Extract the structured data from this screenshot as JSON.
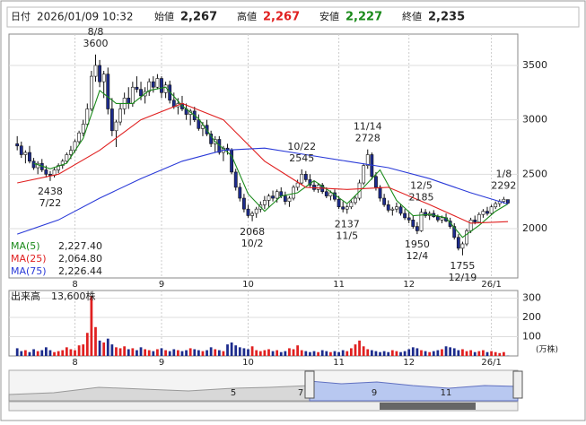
{
  "header": {
    "date_label": "日付",
    "datetime": "2026/01/09 10:32",
    "open_label": "始値",
    "open": "2,267",
    "high_label": "高値",
    "high": "2,267",
    "low_label": "安値",
    "low": "2,227",
    "close_label": "終値",
    "close": "2,235"
  },
  "chart_data": [
    {
      "type": "candlestick",
      "xlim": [
        -2,
        121.4
      ],
      "xticks": [
        {
          "value": 14,
          "label": "8"
        },
        {
          "value": 35,
          "label": "9"
        },
        {
          "value": 56,
          "label": "10"
        },
        {
          "value": 78,
          "label": "11"
        },
        {
          "value": 95,
          "label": "12"
        },
        {
          "value": 115,
          "label": "26/1"
        }
      ],
      "ylim": [
        1547,
        3788
      ],
      "yticks": [
        2000,
        2500,
        3000,
        3500
      ],
      "grid": true,
      "up_color": "#ffffff",
      "down_color": "#1c2b8c",
      "candles": [
        [
          2780,
          2850,
          2720,
          2760
        ],
        [
          2760,
          2800,
          2650,
          2680
        ],
        [
          2680,
          2720,
          2600,
          2700
        ],
        [
          2700,
          2760,
          2600,
          2620
        ],
        [
          2620,
          2650,
          2540,
          2560
        ],
        [
          2560,
          2620,
          2500,
          2600
        ],
        [
          2600,
          2640,
          2520,
          2540
        ],
        [
          2540,
          2580,
          2470,
          2500
        ],
        [
          2500,
          2530,
          2438,
          2490
        ],
        [
          2490,
          2560,
          2470,
          2540
        ],
        [
          2540,
          2600,
          2510,
          2580
        ],
        [
          2580,
          2640,
          2550,
          2620
        ],
        [
          2620,
          2700,
          2600,
          2680
        ],
        [
          2680,
          2760,
          2640,
          2720
        ],
        [
          2720,
          2820,
          2700,
          2800
        ],
        [
          2800,
          2900,
          2780,
          2880
        ],
        [
          2880,
          3000,
          2850,
          2960
        ],
        [
          2960,
          3150,
          2940,
          3100
        ],
        [
          3100,
          3450,
          3080,
          3400
        ],
        [
          3400,
          3600,
          3350,
          3500
        ],
        [
          3500,
          3550,
          3300,
          3350
        ],
        [
          3350,
          3450,
          3200,
          3420
        ],
        [
          3420,
          3480,
          3050,
          3100
        ],
        [
          3100,
          3200,
          2850,
          2900
        ],
        [
          2900,
          3000,
          2750,
          2980
        ],
        [
          2980,
          3150,
          2950,
          3100
        ],
        [
          3100,
          3250,
          3050,
          3200
        ],
        [
          3200,
          3300,
          3100,
          3150
        ],
        [
          3150,
          3350,
          3120,
          3300
        ],
        [
          3300,
          3400,
          3250,
          3280
        ],
        [
          3280,
          3350,
          3180,
          3220
        ],
        [
          3220,
          3300,
          3150,
          3260
        ],
        [
          3260,
          3380,
          3220,
          3350
        ],
        [
          3350,
          3400,
          3250,
          3300
        ],
        [
          3300,
          3420,
          3280,
          3380
        ],
        [
          3380,
          3400,
          3200,
          3250
        ],
        [
          3250,
          3350,
          3200,
          3320
        ],
        [
          3320,
          3360,
          3150,
          3180
        ],
        [
          3180,
          3250,
          3100,
          3120
        ],
        [
          3120,
          3200,
          3050,
          3150
        ],
        [
          3150,
          3220,
          3080,
          3100
        ],
        [
          3100,
          3150,
          3000,
          3050
        ],
        [
          3050,
          3100,
          2950,
          3080
        ],
        [
          3080,
          3120,
          2980,
          3000
        ],
        [
          3000,
          3050,
          2900,
          2920
        ],
        [
          2920,
          2980,
          2850,
          2950
        ],
        [
          2950,
          3000,
          2850,
          2870
        ],
        [
          2870,
          2900,
          2750,
          2780
        ],
        [
          2780,
          2850,
          2700,
          2820
        ],
        [
          2820,
          2850,
          2680,
          2700
        ],
        [
          2700,
          2760,
          2620,
          2740
        ],
        [
          2740,
          2780,
          2680,
          2720
        ],
        [
          2720,
          2740,
          2500,
          2520
        ],
        [
          2520,
          2550,
          2350,
          2380
        ],
        [
          2380,
          2420,
          2250,
          2280
        ],
        [
          2280,
          2320,
          2150,
          2180
        ],
        [
          2180,
          2220,
          2100,
          2120
        ],
        [
          2120,
          2160,
          2068,
          2140
        ],
        [
          2140,
          2200,
          2100,
          2180
        ],
        [
          2180,
          2250,
          2150,
          2220
        ],
        [
          2220,
          2300,
          2180,
          2260
        ],
        [
          2260,
          2320,
          2200,
          2300
        ],
        [
          2300,
          2350,
          2250,
          2280
        ],
        [
          2280,
          2360,
          2240,
          2340
        ],
        [
          2340,
          2380,
          2280,
          2300
        ],
        [
          2300,
          2340,
          2220,
          2250
        ],
        [
          2250,
          2300,
          2200,
          2280
        ],
        [
          2280,
          2400,
          2260,
          2380
        ],
        [
          2380,
          2450,
          2350,
          2420
        ],
        [
          2420,
          2545,
          2400,
          2500
        ],
        [
          2500,
          2530,
          2430,
          2450
        ],
        [
          2450,
          2500,
          2380,
          2400
        ],
        [
          2400,
          2440,
          2340,
          2360
        ],
        [
          2360,
          2420,
          2330,
          2400
        ],
        [
          2400,
          2420,
          2320,
          2340
        ],
        [
          2340,
          2380,
          2280,
          2300
        ],
        [
          2300,
          2350,
          2260,
          2330
        ],
        [
          2330,
          2360,
          2250,
          2270
        ],
        [
          2270,
          2300,
          2180,
          2200
        ],
        [
          2200,
          2250,
          2150,
          2180
        ],
        [
          2180,
          2220,
          2137,
          2200
        ],
        [
          2200,
          2260,
          2180,
          2240
        ],
        [
          2240,
          2300,
          2220,
          2280
        ],
        [
          2280,
          2450,
          2260,
          2420
        ],
        [
          2420,
          2600,
          2400,
          2580
        ],
        [
          2580,
          2728,
          2550,
          2680
        ],
        [
          2680,
          2700,
          2450,
          2480
        ],
        [
          2480,
          2520,
          2350,
          2380
        ],
        [
          2380,
          2400,
          2250,
          2280
        ],
        [
          2280,
          2320,
          2200,
          2220
        ],
        [
          2220,
          2260,
          2150,
          2170
        ],
        [
          2170,
          2200,
          2120,
          2180
        ],
        [
          2180,
          2240,
          2150,
          2200
        ],
        [
          2200,
          2230,
          2120,
          2140
        ],
        [
          2140,
          2180,
          2080,
          2100
        ],
        [
          2100,
          2150,
          2050,
          2080
        ],
        [
          2080,
          2120,
          2000,
          2020
        ],
        [
          2020,
          2060,
          1950,
          1980
        ],
        [
          1980,
          2185,
          1970,
          2150
        ],
        [
          2150,
          2180,
          2100,
          2120
        ],
        [
          2120,
          2160,
          2080,
          2140
        ],
        [
          2140,
          2170,
          2100,
          2110
        ],
        [
          2110,
          2130,
          2060,
          2080
        ],
        [
          2080,
          2120,
          2050,
          2100
        ],
        [
          2100,
          2140,
          2060,
          2070
        ],
        [
          2070,
          2100,
          2000,
          2020
        ],
        [
          2020,
          2050,
          1900,
          1920
        ],
        [
          1920,
          1950,
          1800,
          1820
        ],
        [
          1820,
          1880,
          1755,
          1860
        ],
        [
          1860,
          2000,
          1840,
          1980
        ],
        [
          1980,
          2100,
          1960,
          2080
        ],
        [
          2080,
          2120,
          2040,
          2060
        ],
        [
          2060,
          2150,
          2050,
          2130
        ],
        [
          2130,
          2180,
          2100,
          2160
        ],
        [
          2160,
          2200,
          2120,
          2140
        ],
        [
          2140,
          2220,
          2130,
          2200
        ],
        [
          2200,
          2250,
          2180,
          2230
        ],
        [
          2230,
          2270,
          2200,
          2250
        ],
        [
          2250,
          2292,
          2230,
          2270
        ],
        [
          2267,
          2267,
          2227,
          2235
        ]
      ],
      "series": [
        {
          "name": "MA(5)",
          "color": "#1a8a1a",
          "legend_value": {
            "value": 2227.4,
            "label": "2,227.40"
          },
          "x": [
            4,
            8,
            12,
            16,
            20,
            24,
            28,
            32,
            36,
            40,
            44,
            48,
            52,
            56,
            60,
            64,
            68,
            72,
            76,
            80,
            84,
            88,
            92,
            96,
            100,
            104,
            108,
            112,
            116,
            119
          ],
          "values": [
            2600,
            2550,
            2600,
            2830,
            3270,
            3150,
            3150,
            3270,
            3300,
            3130,
            3010,
            2800,
            2670,
            2320,
            2160,
            2300,
            2330,
            2440,
            2340,
            2230,
            2380,
            2540,
            2260,
            2120,
            2130,
            2100,
            1920,
            2030,
            2160,
            2227.4
          ]
        },
        {
          "name": "MA(25)",
          "color": "#e02020",
          "legend_value": {
            "value": 2064.8,
            "label": "2,064.80"
          },
          "x": [
            0,
            10,
            20,
            30,
            40,
            50,
            60,
            70,
            80,
            90,
            100,
            110,
            119
          ],
          "values": [
            2420,
            2500,
            2720,
            3000,
            3150,
            3000,
            2620,
            2380,
            2360,
            2380,
            2220,
            2050,
            2064.8
          ]
        },
        {
          "name": "MA(75)",
          "color": "#2a3ad8",
          "legend_value": {
            "value": 2226.44,
            "label": "2,226.44"
          },
          "x": [
            0,
            10,
            20,
            30,
            40,
            50,
            60,
            70,
            80,
            90,
            100,
            110,
            119
          ],
          "values": [
            1950,
            2080,
            2280,
            2460,
            2620,
            2720,
            2740,
            2680,
            2620,
            2560,
            2460,
            2330,
            2226.44
          ]
        }
      ],
      "annotations": [
        {
          "date": "7/22",
          "price": 2438,
          "x": 8,
          "position": "below"
        },
        {
          "date": "8/8",
          "price": 3600,
          "x": 19,
          "position": "above"
        },
        {
          "date": "10/2",
          "price": 2068,
          "x": 57,
          "position": "below"
        },
        {
          "date": "10/22",
          "price": 2545,
          "x": 69,
          "position": "above"
        },
        {
          "date": "11/5",
          "price": 2137,
          "x": 80,
          "position": "below"
        },
        {
          "date": "11/14",
          "price": 2728,
          "x": 85,
          "position": "above"
        },
        {
          "date": "12/5",
          "price": 2185,
          "x": 98,
          "position": "above"
        },
        {
          "date": "12/4",
          "price": 1950,
          "x": 97,
          "position": "below"
        },
        {
          "date": "12/19",
          "price": 1755,
          "x": 108,
          "position": "below"
        },
        {
          "date": "1/8",
          "price": 2292,
          "x": 118,
          "position": "above"
        }
      ]
    },
    {
      "type": "bar",
      "title": "出来高",
      "subtitle": "13,600株",
      "y_label": "(万株)",
      "up_color": "#e02020",
      "down_color": "#1c2b8c",
      "ylim": [
        0,
        340
      ],
      "yticks": [
        100,
        200,
        300
      ],
      "grid": true,
      "values": [
        40,
        25,
        30,
        20,
        35,
        25,
        30,
        45,
        30,
        20,
        25,
        30,
        45,
        35,
        30,
        55,
        60,
        120,
        310,
        150,
        80,
        70,
        90,
        60,
        45,
        40,
        50,
        35,
        40,
        30,
        45,
        35,
        30,
        25,
        35,
        40,
        30,
        25,
        35,
        30,
        25,
        30,
        40,
        35,
        30,
        25,
        30,
        45,
        35,
        30,
        25,
        60,
        70,
        55,
        45,
        40,
        35,
        50,
        30,
        25,
        30,
        35,
        25,
        30,
        20,
        25,
        40,
        35,
        55,
        30,
        25,
        20,
        25,
        20,
        30,
        25,
        20,
        25,
        20,
        30,
        25,
        40,
        60,
        80,
        50,
        35,
        30,
        25,
        20,
        25,
        20,
        30,
        25,
        20,
        25,
        35,
        45,
        40,
        30,
        25,
        20,
        25,
        30,
        35,
        50,
        45,
        40,
        30,
        35,
        25,
        30,
        20,
        25,
        30,
        20,
        25,
        20,
        15,
        20,
        1.36
      ]
    }
  ],
  "navigator": {
    "labels": [
      "5",
      "7",
      "9",
      "11"
    ]
  }
}
